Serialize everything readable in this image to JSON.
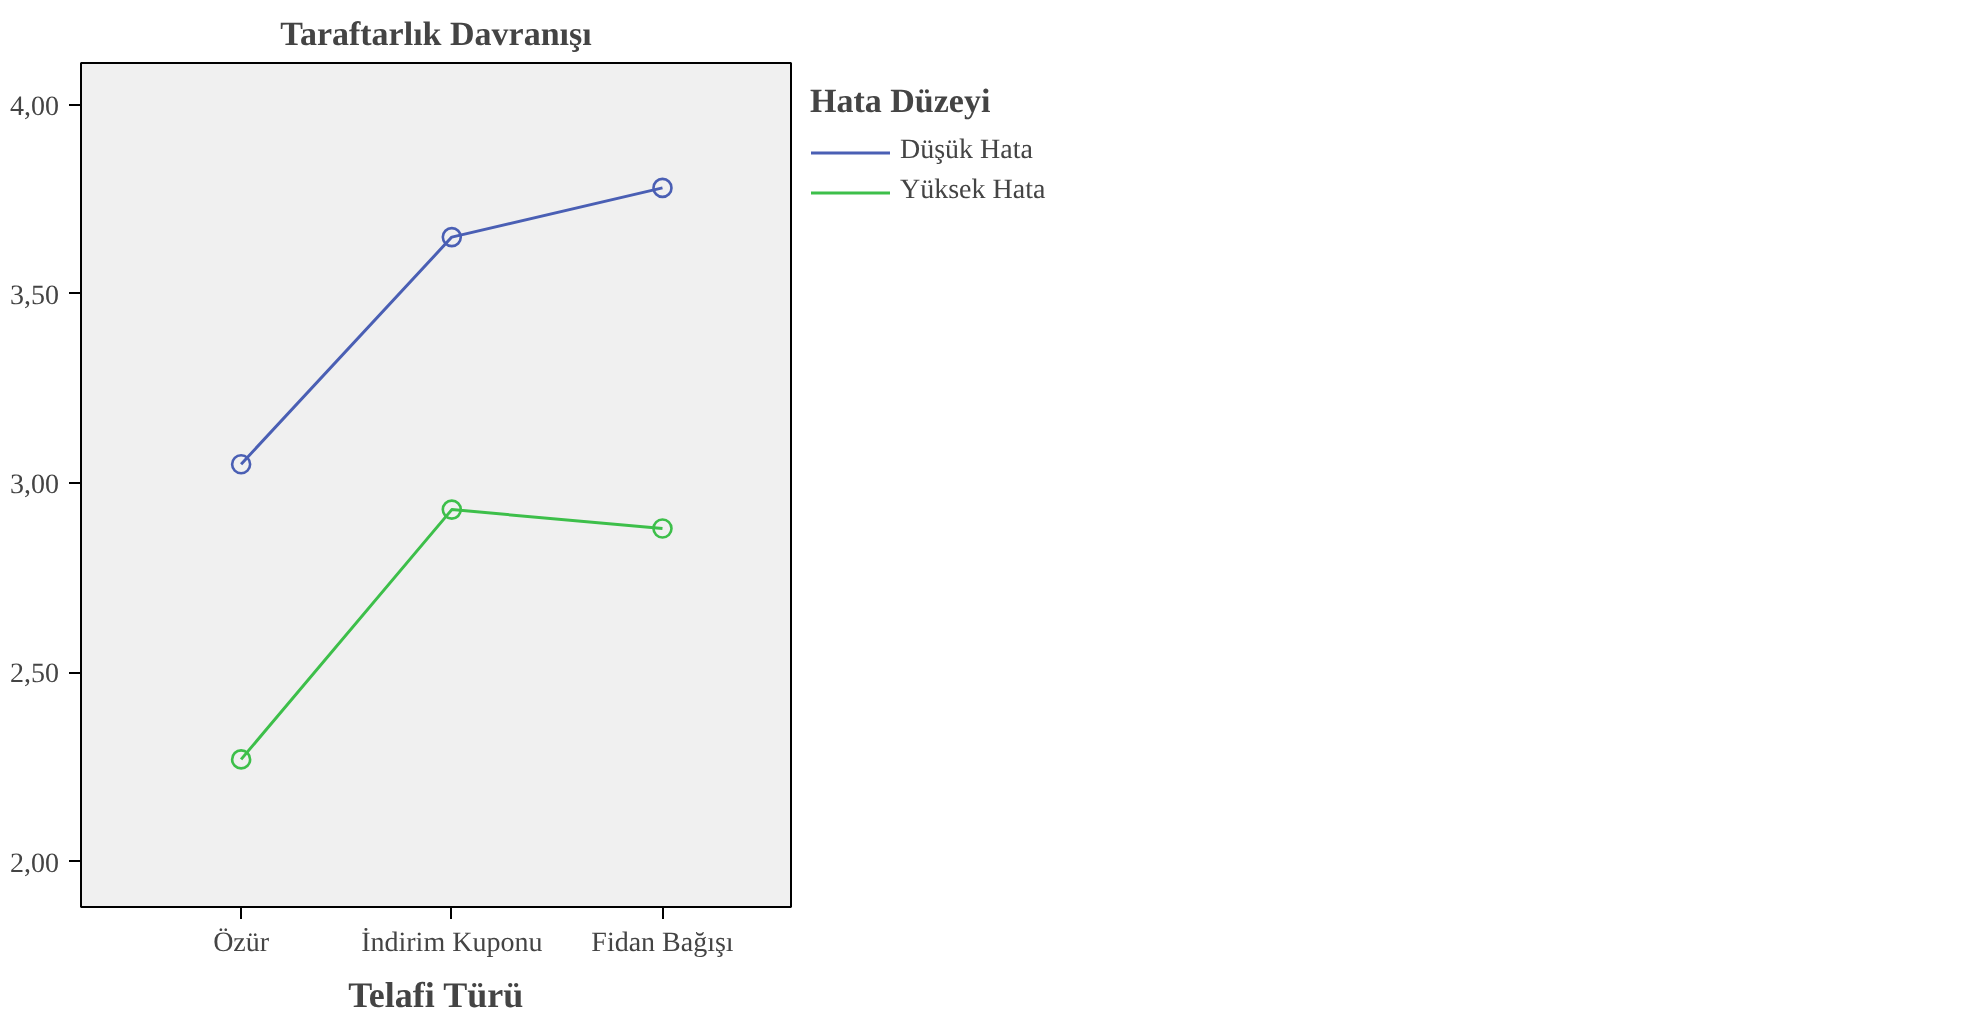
{
  "chart_data": {
    "type": "line",
    "title": "Taraftarlık Davranışı",
    "xlabel": "Telafi Türü",
    "legend_title": "Hata Düzeyi",
    "categories": [
      "Özür",
      "İndirim Kuponu",
      "Fidan Bağışı"
    ],
    "series": [
      {
        "name": "Düşük Hata",
        "color": "#4a5fb4",
        "values": [
          3.05,
          3.65,
          3.78
        ]
      },
      {
        "name": "Yüksek Hata",
        "color": "#3dbf4a",
        "values": [
          2.27,
          2.93,
          2.88
        ]
      }
    ],
    "ylim": [
      1.88,
      4.11
    ],
    "yticks": [
      {
        "value": 2,
        "label": "2,00"
      },
      {
        "value": 2.5,
        "label": "2,50"
      },
      {
        "value": 3,
        "label": "3,00"
      },
      {
        "value": 3.5,
        "label": "3,50"
      },
      {
        "value": 4,
        "label": "4,00"
      }
    ],
    "grid": false,
    "legend": "top right",
    "marker": "circle",
    "line_style": "solid"
  }
}
